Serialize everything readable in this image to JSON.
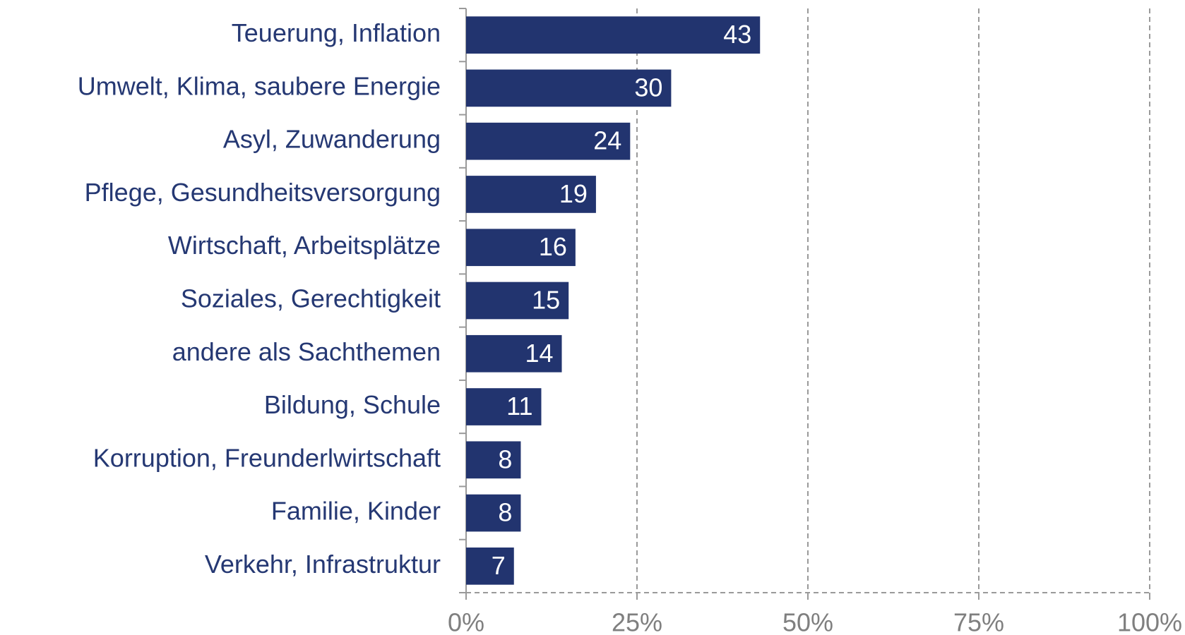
{
  "chart_data": {
    "type": "bar",
    "orientation": "horizontal",
    "categories": [
      "Teuerung, Inflation",
      "Umwelt, Klima, saubere Energie",
      "Asyl, Zuwanderung",
      "Pflege, Gesundheitsversorgung",
      "Wirtschaft, Arbeitsplätze",
      "Soziales, Gerechtigkeit",
      "andere als Sachthemen",
      "Bildung, Schule",
      "Korruption, Freunderlwirtschaft",
      "Familie, Kinder",
      "Verkehr, Infrastruktur"
    ],
    "values": [
      43,
      30,
      24,
      19,
      16,
      15,
      14,
      11,
      8,
      8,
      7
    ],
    "color": "#22346f",
    "xlim": [
      0,
      100
    ],
    "xticks": [
      {
        "value": 0,
        "label": "0%"
      },
      {
        "value": 25,
        "label": "25%"
      },
      {
        "value": 50,
        "label": "50%"
      },
      {
        "value": 75,
        "label": "75%"
      },
      {
        "value": 100,
        "label": "100%"
      }
    ],
    "grid": true
  }
}
